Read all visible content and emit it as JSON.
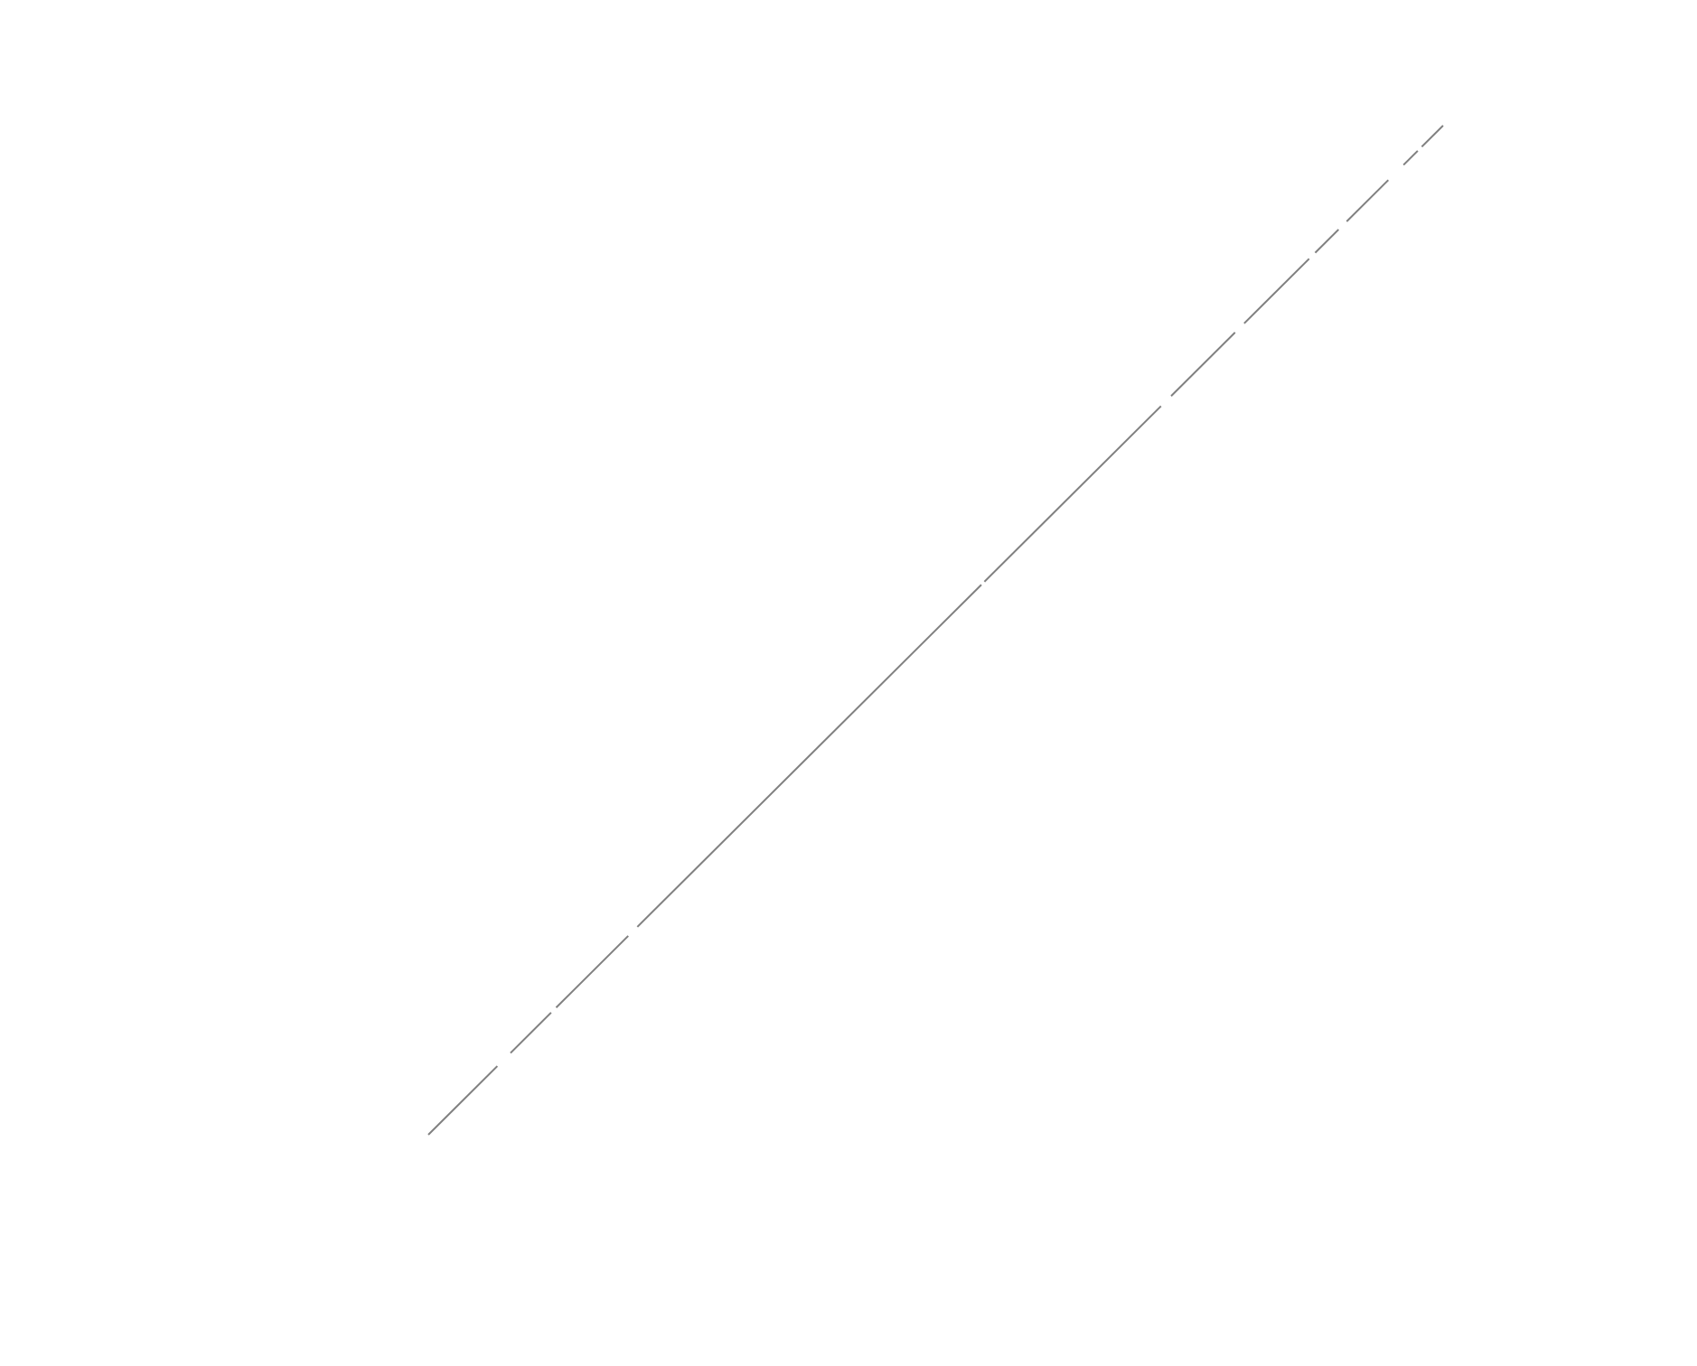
{
  "chart_data": {
    "type": "line",
    "title": "",
    "xlabel": "",
    "ylabel": "",
    "grid": false,
    "axes_visible": false,
    "series": [
      {
        "line_color": "#808080",
        "line_style": "segmented",
        "points": [
          {
            "x": 0.0,
            "y": 0.0
          },
          {
            "x": 0.068,
            "y": 0.068
          },
          {
            "x": 0.081,
            "y": 0.081
          },
          {
            "x": 0.121,
            "y": 0.121
          },
          {
            "x": 0.126,
            "y": 0.126
          },
          {
            "x": 0.197,
            "y": 0.197
          },
          {
            "x": 0.206,
            "y": 0.206
          },
          {
            "x": 0.545,
            "y": 0.545
          },
          {
            "x": 0.548,
            "y": 0.548
          },
          {
            "x": 0.722,
            "y": 0.722
          },
          {
            "x": 0.732,
            "y": 0.732
          },
          {
            "x": 0.795,
            "y": 0.795
          },
          {
            "x": 0.804,
            "y": 0.804
          },
          {
            "x": 0.868,
            "y": 0.868
          },
          {
            "x": 0.874,
            "y": 0.874
          },
          {
            "x": 0.897,
            "y": 0.897
          },
          {
            "x": 0.905,
            "y": 0.905
          },
          {
            "x": 0.946,
            "y": 0.946
          },
          {
            "x": 0.961,
            "y": 0.961
          },
          {
            "x": 0.975,
            "y": 0.975
          },
          {
            "x": 0.979,
            "y": 0.979
          },
          {
            "x": 1.0,
            "y": 1.0
          }
        ]
      }
    ]
  }
}
